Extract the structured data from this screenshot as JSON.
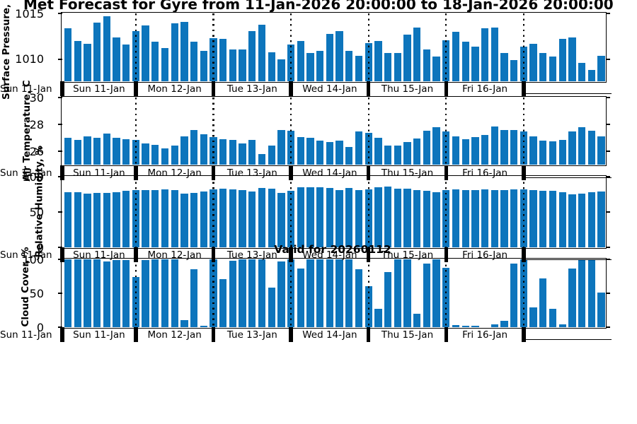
{
  "title": "Met Forecast for Gyre from 11-Jan-2026 20:00:00 to 18-Jan-2026 20:00:00",
  "annotation": "Valid for 20260112",
  "colors": {
    "bar": "#0d75bc",
    "axis": "#000000"
  },
  "x_axis": {
    "day_labels": [
      "Sun 11-Jan",
      "Mon 12-Jan",
      "Tue 13-Jan",
      "Wed 14-Jan",
      "Thu 15-Jan",
      "Fri 16-Jan"
    ],
    "edge_label": "Sun 11-Jan",
    "bars_per_day": 8
  },
  "chart_data": [
    {
      "type": "bar",
      "name": "surface-pressure",
      "ylabel": "Surface Pressure, mb",
      "ylim": [
        1007.6,
        1015
      ],
      "yticks": [
        1010,
        1015
      ],
      "values": [
        1013.4,
        1012.0,
        1011.7,
        1014.0,
        1014.7,
        1012.4,
        1011.6,
        1013.1,
        1013.7,
        1011.9,
        1011.2,
        1013.9,
        1014.1,
        1011.9,
        1010.9,
        1012.3,
        1012.2,
        1011.1,
        1011.1,
        1013.1,
        1013.8,
        1010.8,
        1010.0,
        1011.6,
        1012.0,
        1010.7,
        1010.9,
        1012.8,
        1013.1,
        1010.9,
        1010.4,
        1011.8,
        1012.0,
        1010.7,
        1010.7,
        1012.7,
        1013.5,
        1011.1,
        1010.3,
        1012.1,
        1013.0,
        1011.9,
        1011.4,
        1013.4,
        1013.5,
        1010.7,
        1009.9,
        1011.4,
        1011.7,
        1010.7,
        1010.3,
        1012.2,
        1012.4,
        1009.6,
        1008.8,
        1010.4
      ]
    },
    {
      "type": "bar",
      "name": "air-temperature",
      "ylabel": "Air Temperature, C",
      "ylim": [
        25,
        30
      ],
      "yticks": [
        26,
        28,
        30
      ],
      "values": [
        27.0,
        26.85,
        27.1,
        27.0,
        27.3,
        27.0,
        26.9,
        26.85,
        26.6,
        26.5,
        26.2,
        26.4,
        27.1,
        27.6,
        27.25,
        27.05,
        26.9,
        26.85,
        26.6,
        26.85,
        25.8,
        26.4,
        27.6,
        27.55,
        27.05,
        27.0,
        26.8,
        26.7,
        26.8,
        26.3,
        27.5,
        27.35,
        27.0,
        26.4,
        26.45,
        26.7,
        26.95,
        27.55,
        27.8,
        27.5,
        27.1,
        26.9,
        27.05,
        27.2,
        27.85,
        27.6,
        27.6,
        27.5,
        27.1,
        26.8,
        26.75,
        26.85,
        27.5,
        27.8,
        27.55,
        27.1
      ]
    },
    {
      "type": "bar",
      "name": "relative-humidity",
      "ylabel": "Relative Humidity, %",
      "ylim": [
        0,
        100
      ],
      "yticks": [
        0,
        50,
        100
      ],
      "values": [
        78,
        78,
        76,
        77,
        77,
        78,
        80,
        81,
        81,
        81,
        82,
        81,
        76,
        77,
        79,
        82,
        83,
        82,
        81,
        79,
        84,
        83,
        77,
        80,
        85,
        85,
        85,
        84,
        81,
        84,
        81,
        82,
        85,
        86,
        83,
        83,
        81,
        80,
        78,
        81,
        82,
        81,
        81,
        82,
        81,
        81,
        82,
        82,
        81,
        80,
        80,
        78,
        75,
        76,
        78,
        79
      ]
    },
    {
      "type": "bar",
      "name": "cloud-cover",
      "ylabel": "Cloud Cover, %",
      "ylim": [
        0,
        100
      ],
      "yticks": [
        0,
        50,
        100
      ],
      "values": [
        100,
        100,
        100,
        100,
        97,
        99,
        99,
        74,
        99,
        100,
        100,
        100,
        10,
        85,
        2,
        100,
        71,
        98,
        100,
        100,
        100,
        58,
        97,
        100,
        87,
        100,
        100,
        100,
        100,
        100,
        85,
        60,
        27,
        81,
        100,
        100,
        20,
        94,
        100,
        88,
        3,
        2,
        2,
        0,
        4,
        9,
        94,
        100,
        29,
        72,
        27,
        4,
        86,
        100,
        100,
        51
      ]
    }
  ]
}
